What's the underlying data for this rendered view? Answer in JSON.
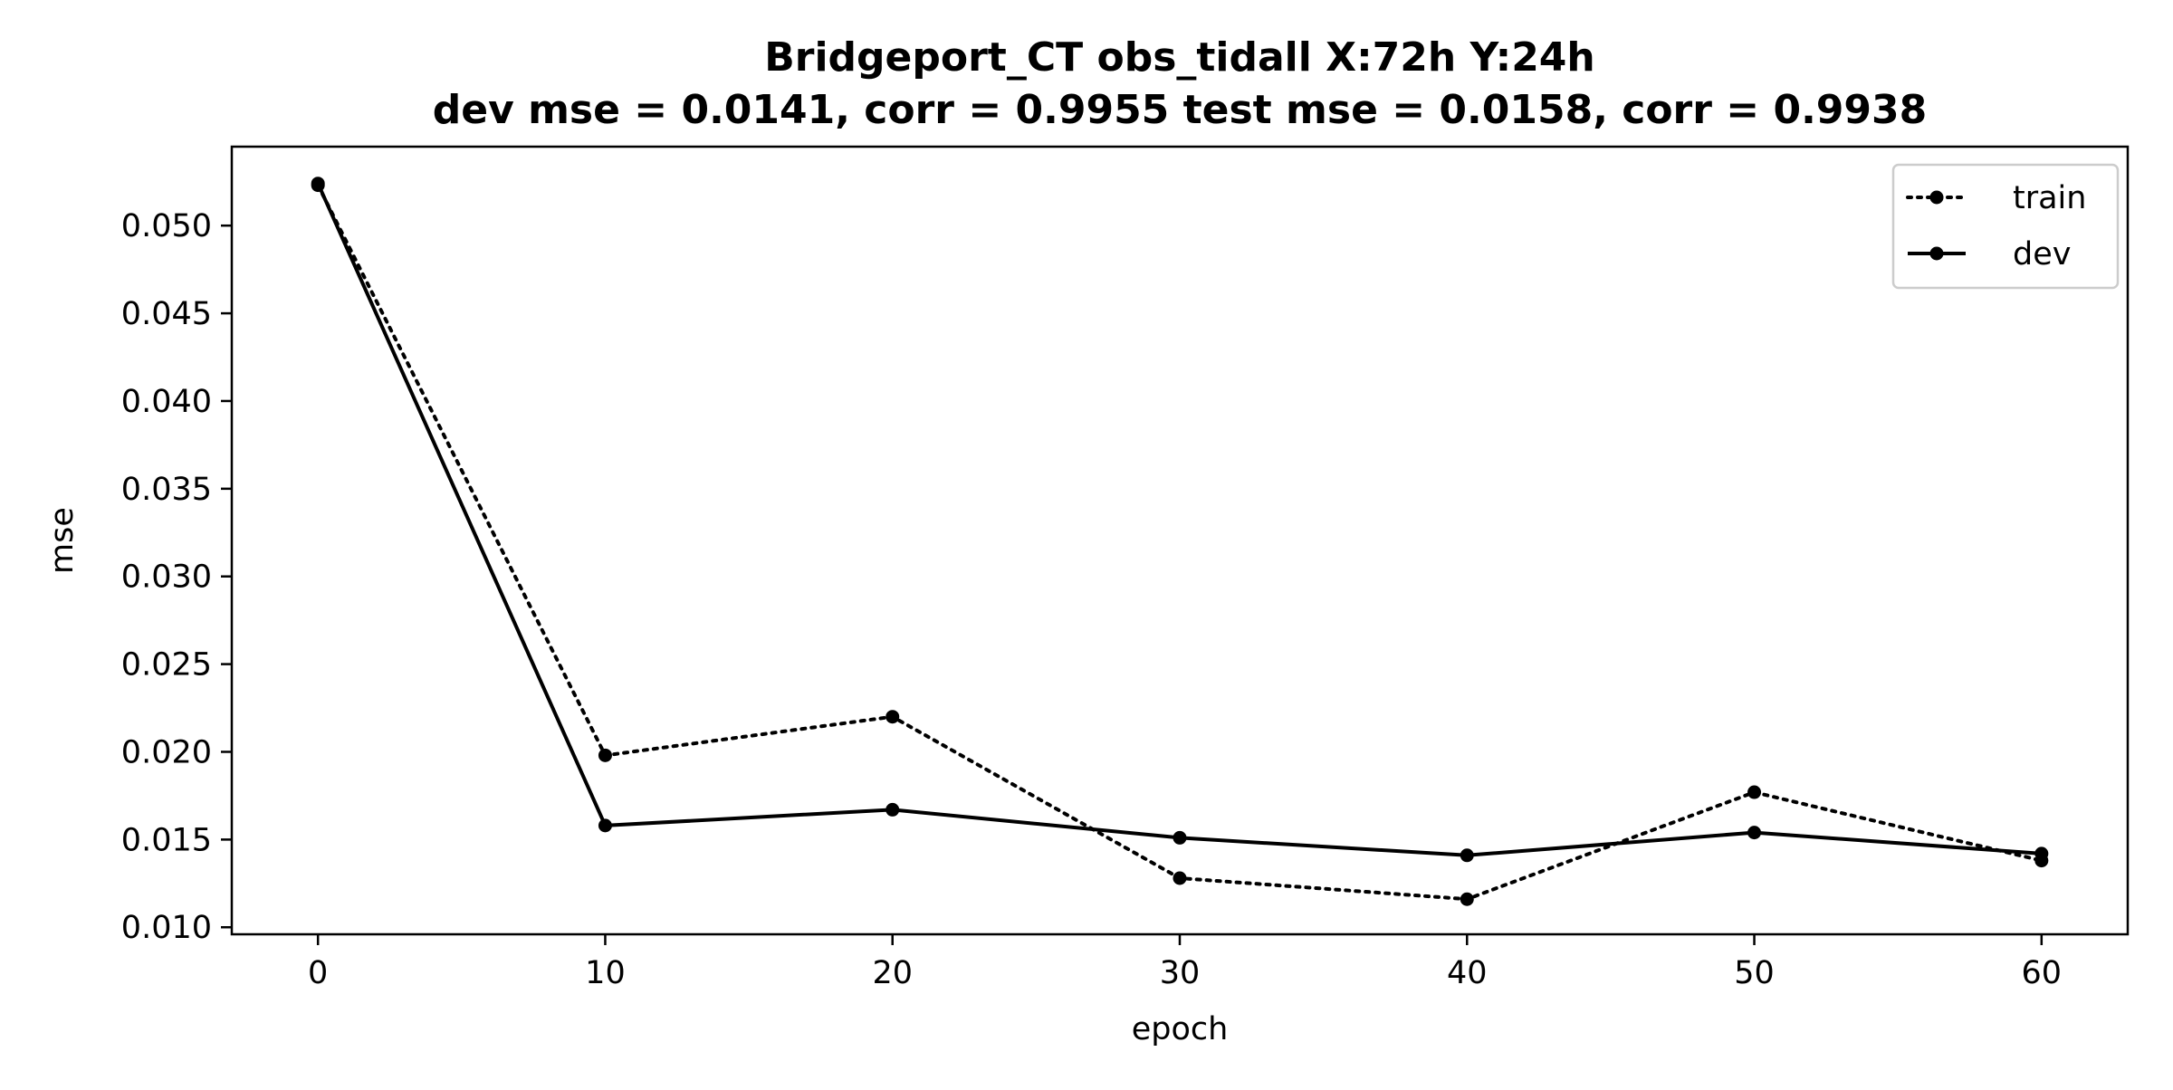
{
  "chart_data": {
    "type": "line",
    "title": "Bridgeport_CT   obs_tidall   X:72h   Y:24h",
    "subtitle": "dev mse = 0.0141, corr = 0.9955   test mse = 0.0158, corr = 0.9938",
    "xlabel": "epoch",
    "ylabel": "mse",
    "x": [
      0,
      10,
      20,
      30,
      40,
      50,
      60
    ],
    "xticks": [
      0,
      10,
      20,
      30,
      40,
      50,
      60
    ],
    "yticks": [
      0.01,
      0.015,
      0.02,
      0.025,
      0.03,
      0.035,
      0.04,
      0.045,
      0.05
    ],
    "ytick_labels": [
      "0.010",
      "0.015",
      "0.020",
      "0.025",
      "0.030",
      "0.035",
      "0.040",
      "0.045",
      "0.050"
    ],
    "xlim": [
      -3,
      63
    ],
    "ylim": [
      0.0096,
      0.0545
    ],
    "grid": false,
    "legend_position": "top-right",
    "series": [
      {
        "name": "train",
        "style": "dotted",
        "color": "#000000",
        "values": [
          0.0523,
          0.0198,
          0.022,
          0.0128,
          0.0116,
          0.0177,
          0.0138
        ]
      },
      {
        "name": "dev",
        "style": "solid",
        "color": "#000000",
        "values": [
          0.0524,
          0.0158,
          0.0167,
          0.0151,
          0.0141,
          0.0154,
          0.0142
        ]
      }
    ]
  }
}
